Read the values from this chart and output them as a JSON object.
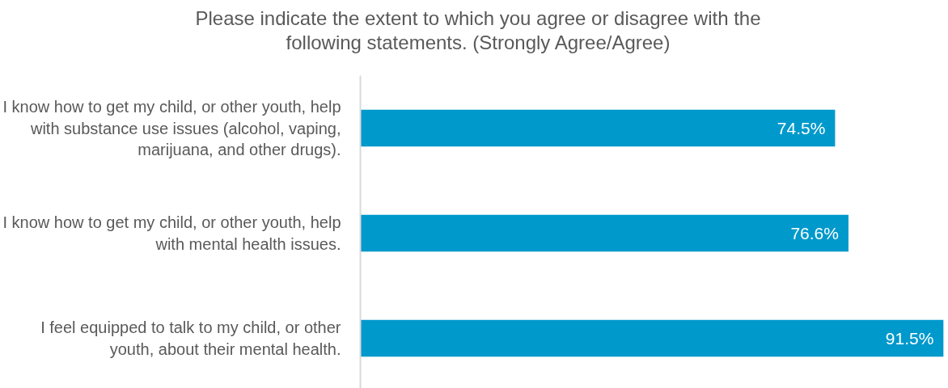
{
  "chart_data": {
    "type": "bar",
    "orientation": "horizontal",
    "title": "Please indicate the extent to which you agree or disagree with the following statements. (Strongly Agree/Agree)",
    "categories": [
      "I know how to get my child, or other youth, help with substance use issues (alcohol, vaping, marijuana, and other drugs).",
      "I know how to get my child, or other youth, help with mental health issues.",
      "I feel equipped to talk to my child, or other youth, about their mental health."
    ],
    "values": [
      74.5,
      76.6,
      91.5
    ],
    "color": "#0099cc",
    "value_labels": [
      "74.5%",
      "76.6%",
      "91.5%"
    ],
    "tick_labels": "y"
  }
}
